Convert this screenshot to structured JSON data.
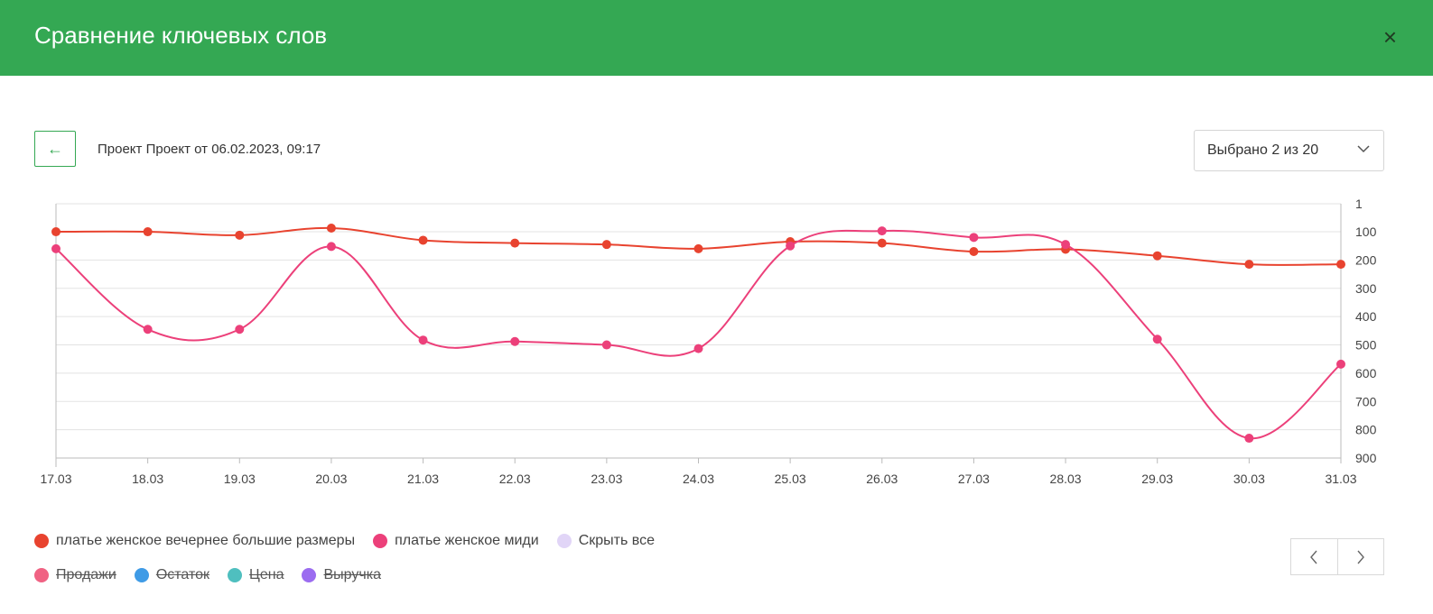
{
  "header": {
    "title": "Сравнение ключевых слов",
    "close_icon": "×"
  },
  "toolbar": {
    "back_icon": "←",
    "project_label": "Проект Проект от 06.02.2023, 09:17",
    "select_value": "Выбрано 2 из 20"
  },
  "legend": {
    "series": [
      {
        "label": "платье женское вечернее большие размеры",
        "color": "#e8432f"
      },
      {
        "label": "платье женское миди",
        "color": "#ec407a"
      },
      {
        "label": "Скрыть все",
        "color": "#e1d5f7"
      }
    ],
    "metrics": [
      {
        "label": "Продажи",
        "color": "#f06283"
      },
      {
        "label": "Остаток",
        "color": "#3f9be6"
      },
      {
        "label": "Цена",
        "color": "#4fbfbf"
      },
      {
        "label": "Выручка",
        "color": "#9b6cf0"
      }
    ]
  },
  "pager": {
    "prev_icon": "‹",
    "next_icon": "›"
  },
  "chart_data": {
    "type": "line",
    "title": "",
    "xlabel": "",
    "ylabel": "",
    "categories": [
      "17.03",
      "18.03",
      "19.03",
      "20.03",
      "21.03",
      "22.03",
      "23.03",
      "24.03",
      "25.03",
      "26.03",
      "27.03",
      "28.03",
      "29.03",
      "30.03",
      "31.03"
    ],
    "y_ticks": [
      1,
      100,
      200,
      300,
      400,
      500,
      600,
      700,
      800,
      900
    ],
    "ylim": [
      1,
      900
    ],
    "y_reversed": true,
    "y_axis_position": "right",
    "grid": true,
    "series": [
      {
        "name": "платье женское вечернее большие размеры",
        "color": "#e8432f",
        "values": [
          100,
          100,
          112,
          87,
          130,
          140,
          145,
          160,
          135,
          140,
          170,
          162,
          185,
          215,
          215
        ]
      },
      {
        "name": "платье женское миди",
        "color": "#ec407a",
        "values": [
          160,
          445,
          445,
          152,
          483,
          488,
          500,
          513,
          150,
          97,
          120,
          145,
          480,
          830,
          568
        ]
      }
    ]
  }
}
